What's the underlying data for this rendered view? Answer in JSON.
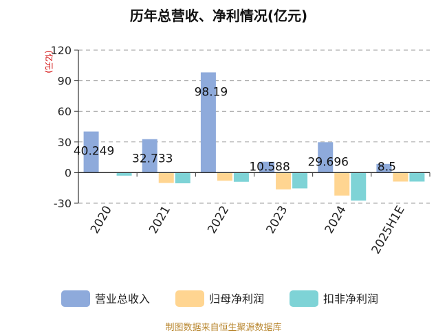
{
  "chart_data": {
    "type": "bar",
    "title": "历年总营收、净利情况(亿元)",
    "unit_label": "(亿元)",
    "categories": [
      "2020",
      "2021",
      "2022",
      "2023",
      "2024",
      "2025H1E"
    ],
    "series": [
      {
        "name": "营业总收入",
        "color": "#8eaadb",
        "values": [
          40.249,
          32.733,
          98.19,
          10.588,
          29.696,
          8.5
        ],
        "data_labels": [
          "40.249",
          "32.733",
          "98.19",
          "10.588",
          "29.696",
          "8.5"
        ]
      },
      {
        "name": "归母净利润",
        "color": "#ffd591",
        "values": [
          0,
          -10.2,
          -8.0,
          -16.5,
          -22.5,
          -8.8
        ]
      },
      {
        "name": "扣非净利润",
        "color": "#7ed3d6",
        "values": [
          -3.0,
          -10.5,
          -9.0,
          -15.5,
          -27.5,
          -8.8
        ]
      }
    ],
    "ylim": [
      -30,
      120
    ],
    "yticks": [
      -30,
      0,
      30,
      60,
      90,
      120
    ],
    "ytick_labels": [
      "-30",
      "0",
      "30",
      "60",
      "90",
      "120"
    ],
    "grid": true,
    "legend_position": "bottom",
    "source": "制图数据来自恒生聚源数据库"
  }
}
